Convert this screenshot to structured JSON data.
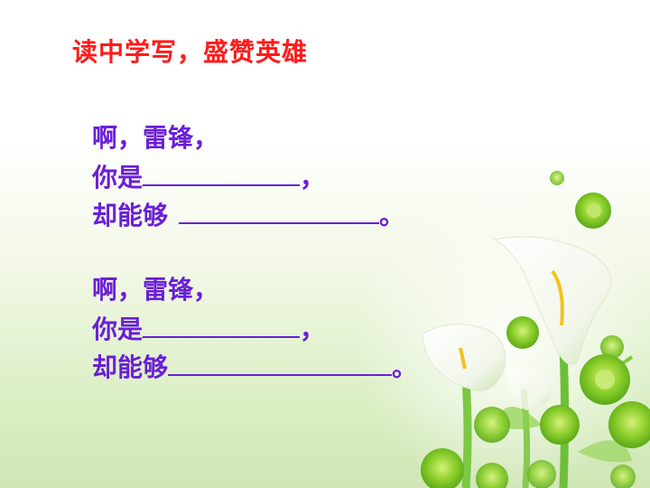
{
  "title": "读中学写，盛赞英雄",
  "stanzas": [
    {
      "line1": "啊，雷锋，",
      "line2_prefix": "你是",
      "line2_suffix": "，",
      "line3_prefix": "却能够",
      "line3_suffix": "。"
    },
    {
      "line1": "啊，雷锋，",
      "line2_prefix": "你是",
      "line2_suffix": "，",
      "line3_prefix": "却能够",
      "line3_suffix": "。"
    }
  ],
  "colors": {
    "title": "#ff1a1a",
    "poem": "#6a1fd6"
  },
  "decoration": [
    "white-calla-lily",
    "green-chrysanthemum"
  ]
}
